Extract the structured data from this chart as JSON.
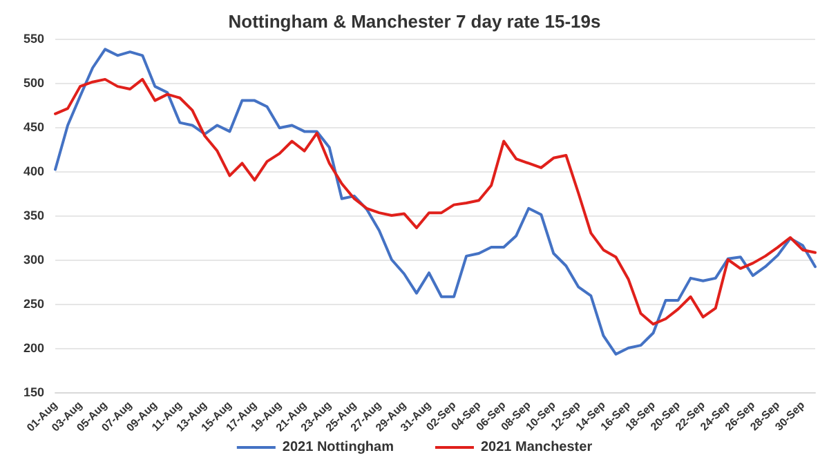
{
  "chart_data": {
    "type": "line",
    "title": "Nottingham & Manchester 7 day rate 15-19s",
    "categories": [
      "01-Aug",
      null,
      "03-Aug",
      null,
      "05-Aug",
      null,
      "07-Aug",
      null,
      "09-Aug",
      null,
      "11-Aug",
      null,
      "13-Aug",
      null,
      "15-Aug",
      null,
      "17-Aug",
      null,
      "19-Aug",
      null,
      "21-Aug",
      null,
      "23-Aug",
      null,
      "25-Aug",
      null,
      "27-Aug",
      null,
      "29-Aug",
      null,
      "31-Aug",
      null,
      "02-Sep",
      null,
      "04-Sep",
      null,
      "06-Sep",
      null,
      "08-Sep",
      null,
      "10-Sep",
      null,
      "12-Sep",
      null,
      "14-Sep",
      null,
      "16-Sep",
      null,
      "18-Sep",
      null,
      "20-Sep",
      null,
      "22-Sep",
      null,
      "24-Sep",
      null,
      "26-Sep",
      null,
      "28-Sep",
      null,
      "30-Sep",
      null
    ],
    "series": [
      {
        "name": "2021 Nottingham",
        "color": "#4472c4",
        "values": [
          402,
          452,
          485,
          517,
          538,
          531,
          535,
          531,
          496,
          489,
          455,
          452,
          442,
          452,
          445,
          480,
          480,
          473,
          449,
          452,
          445,
          445,
          427,
          369,
          372,
          357,
          333,
          300,
          284,
          262,
          285,
          258,
          258,
          304,
          307,
          314,
          314,
          327,
          358,
          351,
          307,
          293,
          269,
          259,
          214,
          193,
          200,
          203,
          217,
          254,
          254,
          279,
          276,
          279,
          301,
          303,
          282,
          292,
          305,
          324,
          316,
          292
        ]
      },
      {
        "name": "2021 Manchester",
        "color": "#e0201b",
        "values": [
          465,
          471,
          496,
          501,
          504,
          496,
          493,
          504,
          480,
          487,
          483,
          469,
          440,
          423,
          395,
          409,
          390,
          411,
          420,
          434,
          423,
          443,
          409,
          386,
          369,
          358,
          353,
          350,
          352,
          336,
          353,
          353,
          362,
          364,
          367,
          384,
          434,
          414,
          409,
          404,
          415,
          418,
          375,
          330,
          311,
          303,
          278,
          239,
          227,
          233,
          244,
          258,
          235,
          245,
          300,
          290,
          296,
          304,
          314,
          325,
          311,
          308
        ]
      }
    ],
    "ylim": [
      150,
      550
    ],
    "yticks": [
      150,
      200,
      250,
      300,
      350,
      400,
      450,
      500,
      550
    ],
    "grid": "y",
    "legend": "bottom",
    "marker": "none",
    "line_style": "solid"
  }
}
